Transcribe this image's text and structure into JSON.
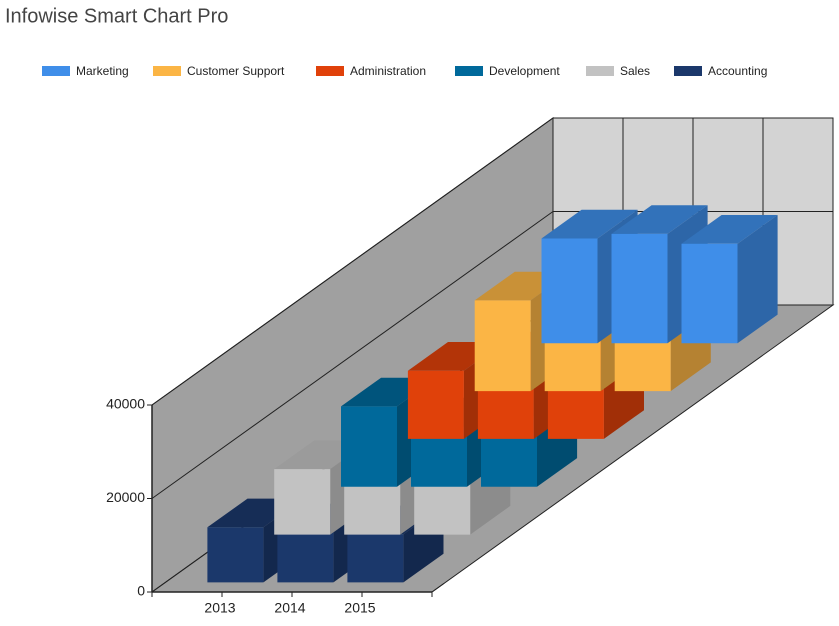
{
  "chart_data": {
    "type": "bar3d",
    "title": "Infowise Smart Chart Pro",
    "categories": [
      "2013",
      "2014",
      "2015"
    ],
    "series": [
      {
        "name": "Marketing",
        "color": "#3f8ee9",
        "values": [
          22400,
          23400,
          21300
        ]
      },
      {
        "name": "Customer Support",
        "color": "#fbb545",
        "values": [
          19400,
          21000,
          18000
        ]
      },
      {
        "name": "Administration",
        "color": "#e0410a",
        "values": [
          14600,
          16800,
          21700
        ]
      },
      {
        "name": "Development",
        "color": "#00699b",
        "values": [
          17200,
          12900,
          15000
        ]
      },
      {
        "name": "Sales",
        "color": "#c2c2c2",
        "values": [
          14000,
          15000,
          13500
        ]
      },
      {
        "name": "Accounting",
        "color": "#1b386b",
        "values": [
          11800,
          10700,
          10300
        ]
      }
    ],
    "ylim": [
      0,
      40000
    ],
    "yticks": [
      0,
      20000,
      40000
    ],
    "grid": true,
    "legend": "top"
  }
}
